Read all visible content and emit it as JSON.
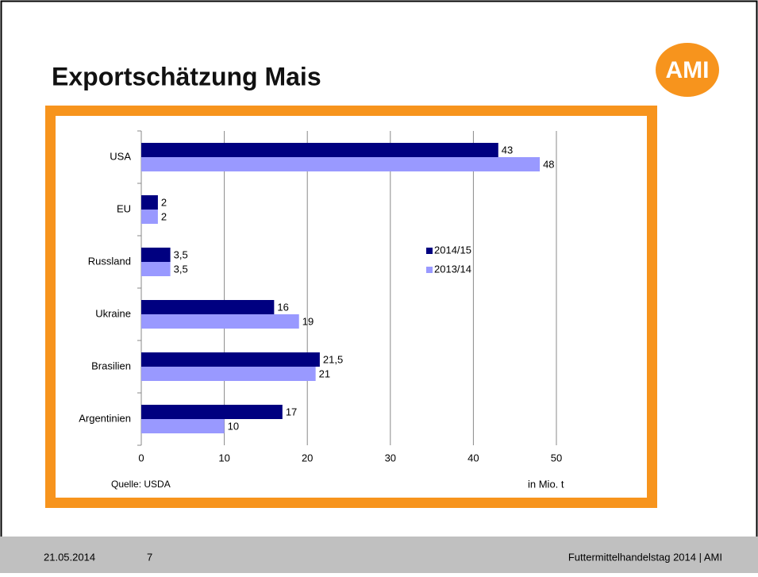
{
  "header": {
    "title": "Exportschätzung Mais",
    "logo": "AMI"
  },
  "footer": {
    "date": "21.05.2014",
    "page": "7",
    "event": "Futtermittelhandelstag 2014 | AMI"
  },
  "chart_data": {
    "type": "barh",
    "categories": [
      "USA",
      "EU",
      "Russland",
      "Ukraine",
      "Brasilien",
      "Argentinien"
    ],
    "series": [
      {
        "name": "2014/15",
        "color": "#000080",
        "values": [
          43,
          2,
          3.5,
          16,
          21.5,
          17
        ],
        "value_labels": [
          "43",
          "2",
          "3,5",
          "16",
          "21,5",
          "17"
        ]
      },
      {
        "name": "2013/14",
        "color": "#9999ff",
        "values": [
          48,
          2,
          3.5,
          19,
          21,
          10
        ],
        "value_labels": [
          "48",
          "2",
          "3,5",
          "19",
          "21",
          "10"
        ]
      }
    ],
    "xlim": [
      0,
      50
    ],
    "xticks": [
      0,
      10,
      20,
      30,
      40,
      50
    ],
    "grid": true,
    "source": "Quelle: USDA",
    "unit_label": "in Mio. t",
    "legend": "right"
  }
}
